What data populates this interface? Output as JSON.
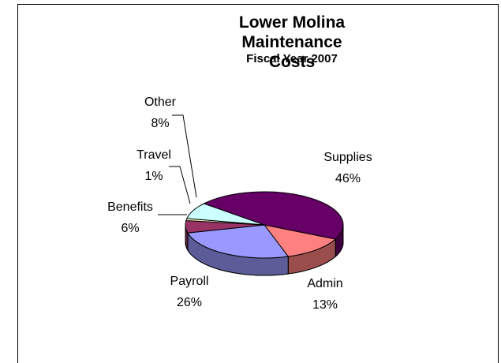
{
  "chart_data": {
    "type": "pie3d",
    "title": "Lower Molina Maintenance Costs",
    "subtitle": "Fiscal Year 2007",
    "categories": [
      "Supplies",
      "Admin",
      "Payroll",
      "Benefits",
      "Travel",
      "Other"
    ],
    "values": [
      46,
      13,
      26,
      6,
      1,
      8
    ],
    "value_labels": [
      "46%",
      "13%",
      "26%",
      "6%",
      "1%",
      "8%"
    ],
    "colors": [
      "#660066",
      "#ff8080",
      "#9999ff",
      "#993366",
      "#ffffcc",
      "#ccffff"
    ]
  }
}
